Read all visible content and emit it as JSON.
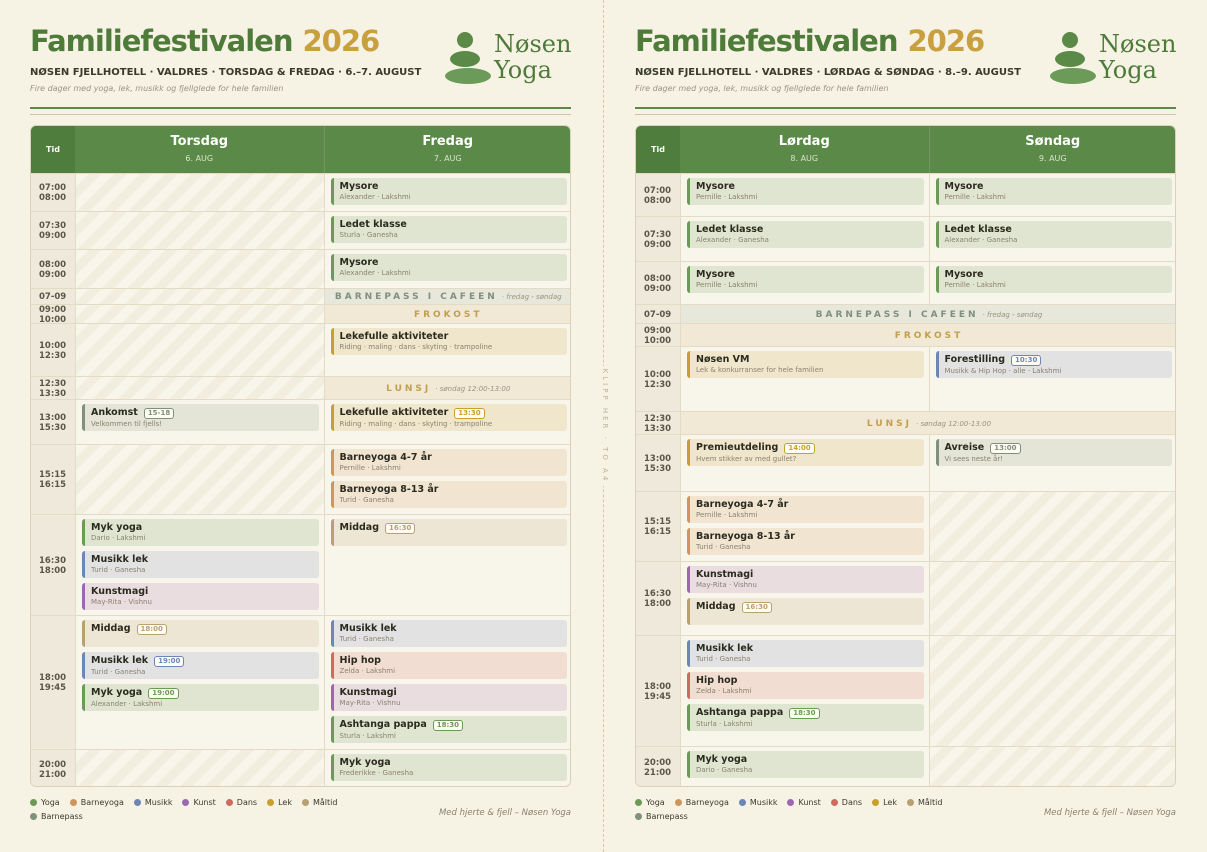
{
  "pages": [
    {
      "title": "Familiefestivalen",
      "year": "2026",
      "subtitle": "NØSEN FJELLHOTELL · VALDRES · TORSDAG & FREDAG · 6.–7. AUGUST",
      "tagline": "Fire dager med yoga, lek, musikk og fjellglede for hele familien",
      "logo": [
        "Nøsen",
        "Yoga"
      ],
      "table": {
        "time_header": "Tid",
        "days": [
          {
            "name": "Torsdag",
            "date": "6. AUG"
          },
          {
            "name": "Fredag",
            "date": "7. AUG"
          }
        ],
        "rows": [
          {
            "time": [
              "07:00",
              "08:00"
            ],
            "cells": [
              [],
              [
                {
                  "title": "Mysore",
                  "sub": "Alexander · Lakshmi",
                  "color": "#6a9a55"
                }
              ]
            ]
          },
          {
            "time": [
              "07:30",
              "09:00"
            ],
            "cells": [
              [],
              [
                {
                  "title": "Ledet klasse",
                  "sub": "Sturla · Ganesha",
                  "color": "#6a9a55"
                }
              ]
            ]
          },
          {
            "time": [
              "08:00",
              "09:00"
            ],
            "cells": [
              [],
              [
                {
                  "title": "Mysore",
                  "sub": "Alexander · Lakshmi",
                  "color": "#6a9a55"
                }
              ]
            ]
          },
          {
            "time": [
              "07-09"
            ],
            "cells": [
              []
            ],
            "banner": {
              "label": "BARNEPASS I CAFEEN",
              "note": "· fredag - søndag",
              "color": "#7f907c"
            }
          },
          {
            "time": [
              "09:00",
              "10:00"
            ],
            "cells": [
              []
            ],
            "banner": {
              "label": "FROKOST",
              "color": "#c0a050"
            }
          },
          {
            "time": [
              "10:00",
              "12:30"
            ],
            "cells": [
              [],
              [
                {
                  "title": "Lekefulle aktiviteter",
                  "sub": "Riding · maling · dans · skyting · trampoline",
                  "color": "#c9a02e"
                }
              ]
            ]
          },
          {
            "time": [
              "12:30",
              "13:30"
            ],
            "cells": [
              []
            ],
            "banner": {
              "label": "LUNSJ",
              "note": "· søndag 12:00-13:00",
              "color": "#c0a050"
            }
          },
          {
            "time": [
              "13:00",
              "15:30"
            ],
            "cells": [
              [
                {
                  "title": "Ankomst",
                  "badge": "15-18",
                  "sub": "Velkommen til fjells!",
                  "color": "#7f907c"
                }
              ],
              [
                {
                  "title": "Lekefulle aktiviteter",
                  "badge": "13:30",
                  "sub": "Riding · maling · dans · skyting · trampoline",
                  "color": "#c9a02e"
                }
              ]
            ]
          },
          {
            "time": [
              "15:15",
              "16:15"
            ],
            "cells": [
              [],
              [
                {
                  "title": "Barneyoga 4-7 år",
                  "sub": "Pernille · Lakshmi",
                  "color": "#d0955a"
                },
                {
                  "title": "Barneyoga 8-13 år",
                  "sub": "Turid · Ganesha",
                  "color": "#d0955a"
                }
              ]
            ]
          },
          {
            "time": [
              "16:30",
              "18:00"
            ],
            "cells": [
              [
                {
                  "title": "Myk yoga",
                  "sub": "Dario · Lakshmi",
                  "color": "#6a9a55"
                },
                {
                  "title": "Musikk lek",
                  "sub": "Turid · Ganesha",
                  "color": "#6c86b8"
                },
                {
                  "title": "Kunstmagi",
                  "sub": "May-Rita · Vishnu",
                  "color": "#9b67b3"
                }
              ],
              [
                {
                  "title": "Middag",
                  "badge": "16:30",
                  "color": "#b8a070"
                }
              ]
            ]
          },
          {
            "time": [
              "18:00",
              "19:45"
            ],
            "cells": [
              [
                {
                  "title": "Middag",
                  "badge": "18:00",
                  "color": "#b8a070"
                },
                {
                  "title": "Musikk lek",
                  "badge": "19:00",
                  "sub": "Turid · Ganesha",
                  "color": "#6c86b8"
                },
                {
                  "title": "Myk yoga",
                  "badge": "19:00",
                  "sub": "Alexander · Lakshmi",
                  "color": "#6a9a55"
                }
              ],
              [
                {
                  "title": "Musikk lek",
                  "sub": "Turid · Ganesha",
                  "color": "#6c86b8"
                },
                {
                  "title": "Hip hop",
                  "sub": "Zelda · Lakshmi",
                  "color": "#cf6a5e"
                },
                {
                  "title": "Kunstmagi",
                  "sub": "May-Rita · Vishnu",
                  "color": "#9b67b3"
                },
                {
                  "title": "Ashtanga pappa",
                  "badge": "18:30",
                  "sub": "Sturla · Lakshmi",
                  "color": "#6a9a55"
                }
              ]
            ]
          },
          {
            "time": [
              "20:00",
              "21:00"
            ],
            "cells": [
              [],
              [
                {
                  "title": "Myk yoga",
                  "sub": "Frederikke · Ganesha",
                  "color": "#6a9a55"
                }
              ]
            ]
          }
        ]
      },
      "legend": [
        {
          "name": "Yoga",
          "color": "#6a9a55"
        },
        {
          "name": "Barneyoga",
          "color": "#d0955a"
        },
        {
          "name": "Musikk",
          "color": "#6c86b8"
        },
        {
          "name": "Kunst",
          "color": "#9b67b3"
        },
        {
          "name": "Dans",
          "color": "#cf6a5e"
        },
        {
          "name": "Lek",
          "color": "#c9a02e"
        },
        {
          "name": "Måltid",
          "color": "#b8a070"
        },
        {
          "name": "Barnepass",
          "color": "#7f907c"
        }
      ],
      "footer": "Med hjerte & fjell – Nøsen Yoga"
    },
    {
      "title": "Familiefestivalen",
      "year": "2026",
      "subtitle": "NØSEN FJELLHOTELL · VALDRES · LØRDAG & SØNDAG · 8.–9. AUGUST",
      "tagline": "Fire dager med yoga, lek, musikk og fjellglede for hele familien",
      "logo": [
        "Nøsen",
        "Yoga"
      ],
      "table": {
        "time_header": "Tid",
        "days": [
          {
            "name": "Lørdag",
            "date": "8. AUG"
          },
          {
            "name": "Søndag",
            "date": "9. AUG"
          }
        ],
        "rows": [
          {
            "time": [
              "07:00",
              "08:00"
            ],
            "cells": [
              [
                {
                  "title": "Mysore",
                  "sub": "Pernille · Lakshmi",
                  "color": "#6a9a55"
                }
              ],
              [
                {
                  "title": "Mysore",
                  "sub": "Pernille · Lakshmi",
                  "color": "#6a9a55"
                }
              ]
            ]
          },
          {
            "time": [
              "07:30",
              "09:00"
            ],
            "cells": [
              [
                {
                  "title": "Ledet klasse",
                  "sub": "Alexander · Ganesha",
                  "color": "#6a9a55"
                }
              ],
              [
                {
                  "title": "Ledet klasse",
                  "sub": "Alexander · Ganesha",
                  "color": "#6a9a55"
                }
              ]
            ]
          },
          {
            "time": [
              "08:00",
              "09:00"
            ],
            "cells": [
              [
                {
                  "title": "Mysore",
                  "sub": "Pernille · Lakshmi",
                  "color": "#6a9a55"
                }
              ],
              [
                {
                  "title": "Mysore",
                  "sub": "Pernille · Lakshmi",
                  "color": "#6a9a55"
                }
              ]
            ]
          },
          {
            "time": [
              "07-09"
            ],
            "cells": [],
            "banner": {
              "label": "BARNEPASS I CAFEEN",
              "note": "· fredag - søndag",
              "color": "#7f907c"
            }
          },
          {
            "time": [
              "09:00",
              "10:00"
            ],
            "cells": [],
            "banner": {
              "label": "FROKOST",
              "color": "#c0a050"
            }
          },
          {
            "time": [
              "10:00",
              "12:30"
            ],
            "cells": [
              [
                {
                  "title": "Nøsen VM",
                  "sub": "Lek & konkurranser for hele familien",
                  "color": "#c9a02e"
                }
              ],
              [
                {
                  "title": "Forestilling",
                  "badge": "10:30",
                  "sub": "Musikk & Hip Hop · alle · Lakshmi",
                  "color": "#6c86b8"
                }
              ]
            ]
          },
          {
            "time": [
              "12:30",
              "13:30"
            ],
            "cells": [],
            "banner": {
              "label": "LUNSJ",
              "note": "· søndag 12:00-13:00",
              "color": "#c0a050"
            }
          },
          {
            "time": [
              "13:00",
              "15:30"
            ],
            "cells": [
              [
                {
                  "title": "Premieutdeling",
                  "badge": "14:00",
                  "sub": "Hvem stikker av med gullet?",
                  "color": "#c9a02e"
                }
              ],
              [
                {
                  "title": "Avreise",
                  "badge": "13:00",
                  "sub": "Vi sees neste år!",
                  "color": "#7f907c"
                }
              ]
            ]
          },
          {
            "time": [
              "15:15",
              "16:15"
            ],
            "cells": [
              [
                {
                  "title": "Barneyoga 4-7 år",
                  "sub": "Pernille · Lakshmi",
                  "color": "#d0955a"
                },
                {
                  "title": "Barneyoga 8-13 år",
                  "sub": "Turid · Ganesha",
                  "color": "#d0955a"
                }
              ],
              []
            ]
          },
          {
            "time": [
              "16:30",
              "18:00"
            ],
            "cells": [
              [
                {
                  "title": "Kunstmagi",
                  "sub": "May-Rita · Vishnu",
                  "color": "#9b67b3"
                },
                {
                  "title": "Middag",
                  "badge": "16:30",
                  "color": "#b8a070"
                }
              ],
              []
            ]
          },
          {
            "time": [
              "18:00",
              "19:45"
            ],
            "cells": [
              [
                {
                  "title": "Musikk lek",
                  "sub": "Turid · Ganesha",
                  "color": "#6c86b8"
                },
                {
                  "title": "Hip hop",
                  "sub": "Zelda · Lakshmi",
                  "color": "#cf6a5e"
                },
                {
                  "title": "Ashtanga pappa",
                  "badge": "18:30",
                  "sub": "Sturla · Lakshmi",
                  "color": "#6a9a55"
                }
              ],
              []
            ]
          },
          {
            "time": [
              "20:00",
              "21:00"
            ],
            "cells": [
              [
                {
                  "title": "Myk yoga",
                  "sub": "Dario · Ganesha",
                  "color": "#6a9a55"
                }
              ],
              []
            ]
          }
        ]
      },
      "legend": [
        {
          "name": "Yoga",
          "color": "#6a9a55"
        },
        {
          "name": "Barneyoga",
          "color": "#d0955a"
        },
        {
          "name": "Musikk",
          "color": "#6c86b8"
        },
        {
          "name": "Kunst",
          "color": "#9b67b3"
        },
        {
          "name": "Dans",
          "color": "#cf6a5e"
        },
        {
          "name": "Lek",
          "color": "#c9a02e"
        },
        {
          "name": "Måltid",
          "color": "#b8a070"
        },
        {
          "name": "Barnepass",
          "color": "#7f907c"
        }
      ],
      "footer": "Med hjerte & fjell – Nøsen Yoga"
    }
  ],
  "cut_label": "KLIPP HER · TO A4",
  "viewer": {
    "more": "···"
  }
}
